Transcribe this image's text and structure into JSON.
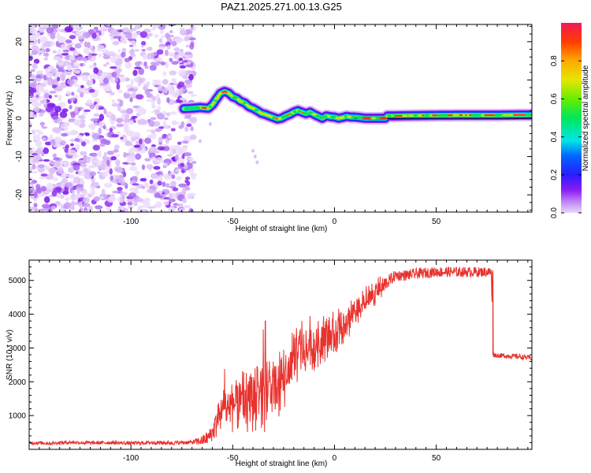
{
  "title": "PAZ1.2025.271.00.13.G25",
  "chart_data": [
    {
      "type": "heatmap",
      "name": "spectrogram",
      "xlabel": "Height of straight line (km)",
      "ylabel": "Frequency (Hz)",
      "xlim": [
        -150,
        97
      ],
      "ylim": [
        -24.5,
        24.5
      ],
      "xticks": [
        -100,
        -50,
        0,
        50
      ],
      "yticks": [
        -20,
        -10,
        0,
        10,
        20
      ],
      "noise_region_x": [
        -150,
        -69
      ],
      "track": {
        "x": [
          -74,
          -70,
          -66,
          -62,
          -60,
          -58,
          -56,
          -54,
          -52,
          -50,
          -48,
          -46,
          -44,
          -42,
          -40,
          -38,
          -36,
          -34,
          -32,
          -30,
          -28,
          -26,
          -24,
          -22,
          -20,
          -18,
          -16,
          -14,
          -12,
          -10,
          -8,
          -6,
          -4,
          -2,
          0,
          2,
          4,
          6,
          8,
          10,
          12,
          15,
          20,
          25,
          26,
          30,
          40,
          60,
          80,
          97
        ],
        "y": [
          2.5,
          2.6,
          2.8,
          2.6,
          3.5,
          5.0,
          6.5,
          7.0,
          6.6,
          5.6,
          5.2,
          4.4,
          4.0,
          3.0,
          2.6,
          2.0,
          1.3,
          1.0,
          0.6,
          0.2,
          -0.2,
          0.0,
          0.6,
          1.0,
          1.6,
          2.0,
          1.6,
          1.2,
          1.6,
          1.0,
          0.5,
          0.0,
          0.6,
          0.4,
          0.3,
          0.0,
          0.2,
          0.5,
          0.3,
          0.3,
          0.2,
          0.0,
          0.0,
          0.0,
          0.6,
          0.6,
          0.7,
          0.8,
          0.8,
          0.9
        ]
      },
      "colorbar": {
        "label": "Normalized spectral amplitude",
        "range": [
          0,
          1
        ],
        "ticks": [
          "0.0",
          "0.2",
          "0.4",
          "0.6",
          "0.8"
        ]
      }
    },
    {
      "type": "line",
      "name": "snr",
      "xlabel": "Height of straight line (km)",
      "ylabel": "SNR (10 * v/v)",
      "xlim": [
        -150,
        97
      ],
      "ylim": [
        0,
        5600
      ],
      "xticks": [
        -100,
        -50,
        0,
        50
      ],
      "yticks": [
        1000,
        2000,
        3000,
        4000,
        5000
      ],
      "color": "#e8322e",
      "series": [
        {
          "name": "SNR",
          "x": [
            -150,
            -140,
            -130,
            -120,
            -110,
            -100,
            -90,
            -80,
            -70,
            -65,
            -62,
            -60,
            -58,
            -56,
            -54,
            -52,
            -50,
            -48,
            -46,
            -44,
            -42,
            -40,
            -38,
            -36,
            -34,
            -32,
            -30,
            -28,
            -26,
            -24,
            -22,
            -20,
            -18,
            -16,
            -14,
            -12,
            -10,
            -8,
            -6,
            -4,
            -2,
            0,
            2,
            4,
            6,
            8,
            10,
            12,
            15,
            20,
            25,
            28,
            30,
            35,
            40,
            50,
            60,
            70,
            77,
            78,
            80,
            90,
            97
          ],
          "y": [
            200,
            180,
            210,
            190,
            200,
            180,
            200,
            190,
            210,
            260,
            350,
            500,
            800,
            1000,
            1300,
            1200,
            1250,
            1350,
            1450,
            1300,
            1500,
            1550,
            1400,
            1650,
            1500,
            1700,
            1800,
            1900,
            2000,
            2200,
            2450,
            2650,
            2800,
            2950,
            3000,
            2850,
            3050,
            3150,
            3250,
            3350,
            3300,
            3450,
            3600,
            3700,
            3800,
            3900,
            4000,
            4150,
            4350,
            4650,
            4900,
            5050,
            5150,
            5150,
            5200,
            5250,
            5250,
            5250,
            5250,
            2800,
            2780,
            2750,
            2700
          ]
        }
      ],
      "spikes": {
        "x": [
          -54,
          -48,
          -42,
          -38,
          -35,
          -34,
          -33,
          -30,
          -25,
          -20,
          -16,
          -12,
          -8,
          -4
        ],
        "y": [
          2380,
          1900,
          2000,
          2450,
          3550,
          3800,
          1100,
          2600,
          2950,
          3300,
          3800,
          3950,
          3800,
          3550
        ]
      },
      "noise_amplitude": {
        "x": [
          -150,
          -70,
          -60,
          -40,
          -20,
          0,
          20,
          30,
          77,
          78,
          97
        ],
        "y": [
          50,
          60,
          250,
          700,
          550,
          420,
          250,
          160,
          150,
          70,
          80
        ]
      }
    }
  ]
}
